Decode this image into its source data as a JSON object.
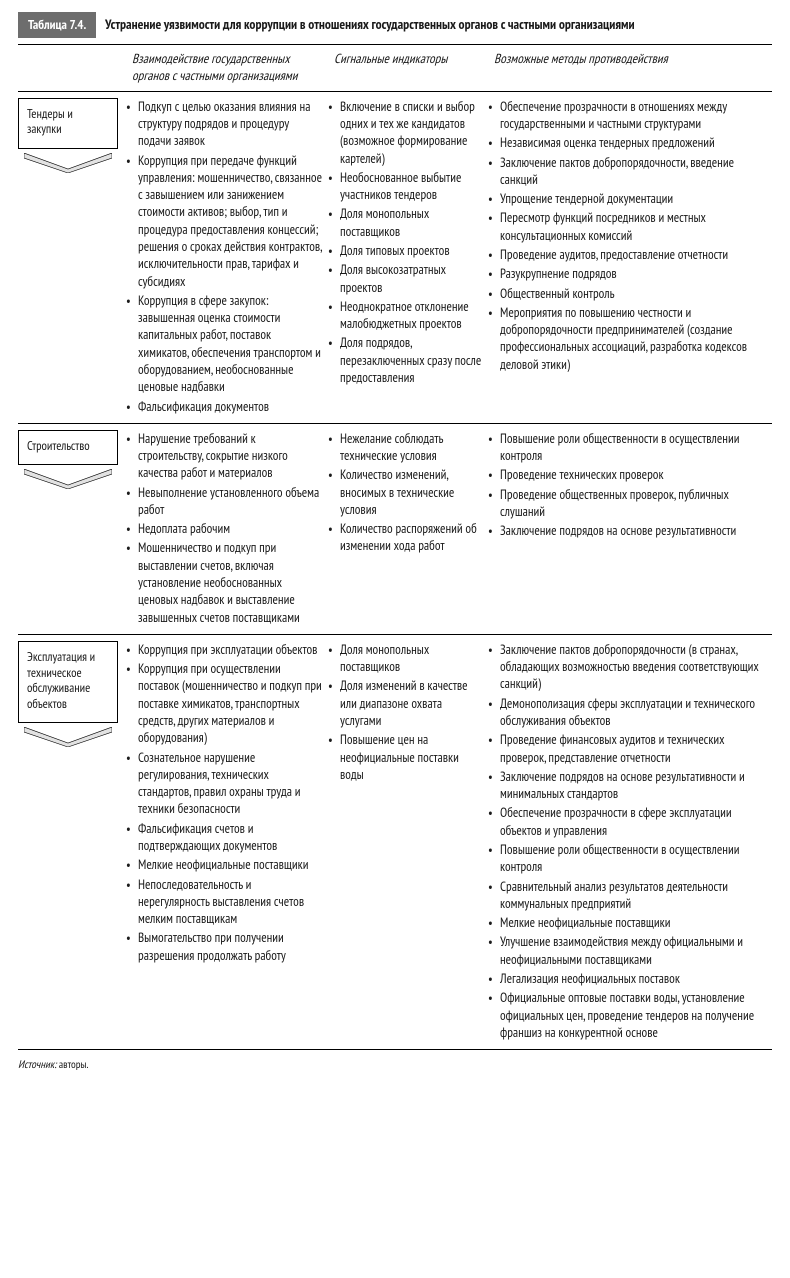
{
  "table_label": "Таблица 7.4.",
  "table_title": "Устранение уязвимости для коррупции в отношениях государственных органов с частными организациями",
  "headers": {
    "col1": "Взаимодействие государственных органов с частными организациями",
    "col2": "Сигнальные индикаторы",
    "col3": "Возможные методы противодействия"
  },
  "rows": [
    {
      "label": "Тендеры и закупки",
      "col1": [
        "Подкуп с целью оказания влияния на структуру подрядов и процедуру подачи заявок",
        "Коррупция при передаче функций управления: мошенничество, связанное с завышением или занижением стоимости активов; выбор, тип и процедура предоставления концессий; решения о сроках действия контрактов, исключительности прав, тарифах и субсидиях",
        "Коррупция в сфере закупок: завышенная оценка стоимости капитальных работ, поставок химикатов, обеспечения транспортом и оборудованием, необоснованные ценовые надбавки",
        "Фальсификация документов"
      ],
      "col2": [
        "Включение в списки и выбор одних и тех же кандидатов (возможное формирование картелей)",
        "Необоснованное выбытие участников тендеров",
        "Доля монопольных поставщиков",
        "Доля типовых проектов",
        "Доля высокозатратных проектов",
        "Неоднократное отклонение малобюджетных проектов",
        "Доля подрядов, перезаключенных сразу после предоставления"
      ],
      "col3": [
        "Обеспечение прозрачности в отношениях между государственными и частными структурами",
        "Независимая оценка тендерных предложений",
        "Заключение пактов добропорядочности, введение санкций",
        "Упрощение тендерной документации",
        "Пересмотр функций посредников и местных консультационных комиссий",
        "Проведение аудитов, предоставление отчетности",
        "Разукрупнение подрядов",
        "Общественный контроль",
        "Мероприятия по повышению честности и добропорядочности предпринимателей (создание профессиональных ассоциаций, разработка кодексов деловой этики)"
      ]
    },
    {
      "label": "Строительство",
      "col1": [
        "Нарушение требований к строительству, сокрытие низкого качества работ и материалов",
        "Невыполнение установленного объема работ",
        "Недоплата рабочим",
        "Мошенничество и подкуп при выставлении счетов, включая установление необоснованных ценовых надбавок и выставление завышенных счетов поставщиками"
      ],
      "col2": [
        "Нежелание соблюдать технические условия",
        "Количество изменений, вносимых в технические условия",
        "Количество распоряжений об изменении хода работ"
      ],
      "col3": [
        "Повышение роли общественности в осуществлении контроля",
        "Проведение технических проверок",
        "Проведение общественных проверок, публичных слушаний",
        "Заключение подрядов на основе результативности"
      ]
    },
    {
      "label": "Эксплуатация и техническое обслуживание объектов",
      "col1": [
        "Коррупция при эксплуатации объектов",
        "Коррупция при осуществлении поставок (мошенничество и подкуп при поставке химикатов, транспортных средств, других материалов и оборудования)",
        "Сознательное нарушение регулирования, технических стандартов, правил охраны труда и техники безопасности",
        "Фальсификация счетов и подтверждающих документов",
        "Мелкие неофициальные поставщики",
        "Непоследовательность и нерегулярность выставления счетов мелким поставщикам",
        "Вымогательство при получении разрешения продолжать работу"
      ],
      "col2": [
        "Доля монопольных поставщиков",
        "Доля изменений в качестве или диапазоне охвата услугами",
        "Повышение цен на неофициальные поставки воды"
      ],
      "col3": [
        "Заключение пактов добропорядочности (в странах, обладающих возможностью введения соответствующих санкций)",
        "Демонополизация сферы эксплуатации и технического обслуживания объектов",
        "Проведение финансовых аудитов и технических проверок, представление отчетности",
        "Заключение подрядов на основе результативности и минимальных стандартов",
        "Обеспечение прозрачности в сфере эксплуатации объектов и управления",
        "Повышение роли общественности в осуществлении контроля",
        "Сравнительный анализ результатов деятельности коммунальных предприятий",
        "Мелкие неофициальные поставщики",
        "Улучшение взаимодействия между официальными и неофициальными поставщиками",
        "Легализация неофициальных поставок",
        "Официальные оптовые поставки воды, установление официальных цен, проведение тендеров на получение франшиз на конкурентной основе"
      ]
    }
  ],
  "source_label": "Источник:",
  "source_text": "авторы."
}
